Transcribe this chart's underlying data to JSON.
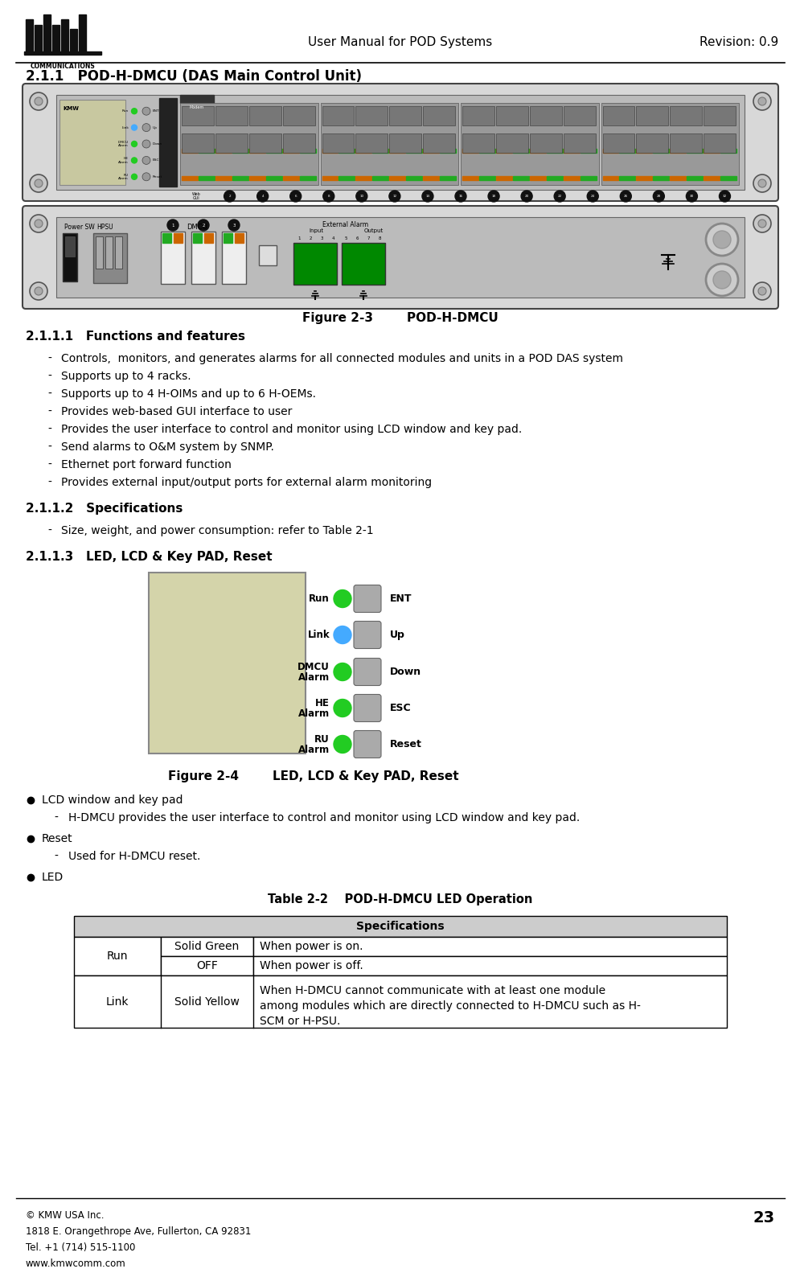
{
  "title_center": "User Manual for POD Systems",
  "title_right": "Revision: 0.9",
  "page_number": "23",
  "section_title": "2.1.1   POD-H-DMCU (DAS Main Control Unit)",
  "fig2_3_label": "Figure 2-3        POD-H-DMCU",
  "fig2_4_label": "Figure 2-4        LED, LCD & Key PAD, Reset",
  "section_2111": "2.1.1.1   Functions and features",
  "section_2112": "2.1.1.2   Specifications",
  "section_2113": "2.1.1.3   LED, LCD & Key PAD, Reset",
  "functions": [
    "Controls,  monitors, and generates alarms for all connected modules and units in a POD DAS system",
    "Supports up to 4 racks.",
    "Supports up to 4 H-OIMs and up to 6 H-OEMs.",
    "Provides web-based GUI interface to user",
    "Provides the user interface to control and monitor using LCD window and key pad.",
    "Send alarms to O&M system by SNMP.",
    "Ethernet port forward function",
    "Provides external input/output ports for external alarm monitoring"
  ],
  "spec_text": "Size, weight, and power consumption: refer to Table 2-1",
  "bullet_points": [
    "LCD window and key pad",
    "Reset",
    "LED"
  ],
  "sub_bullets": {
    "LCD window and key pad": "H-DMCU provides the user interface to control and monitor using LCD window and key pad.",
    "Reset": "Used for H-DMCU reset."
  },
  "table_title": "Table 2-2    POD-H-DMCU LED Operation",
  "table_header": "Specifications",
  "led_panel": {
    "labels_left": [
      "Run",
      "Link",
      "DMCU\nAlarm",
      "HE\nAlarm",
      "RU\nAlarm"
    ],
    "led_colors": [
      "#22cc22",
      "#44aaff",
      "#22cc22",
      "#22cc22",
      "#22cc22"
    ],
    "labels_right": [
      "ENT",
      "Up",
      "Down",
      "ESC",
      "Reset"
    ]
  },
  "footer_left": "© KMW USA Inc.\n1818 E. Orangethrope Ave, Fullerton, CA 92831\nTel. +1 (714) 515-1100\nwww.kmwcomm.com",
  "bg_color": "#ffffff"
}
